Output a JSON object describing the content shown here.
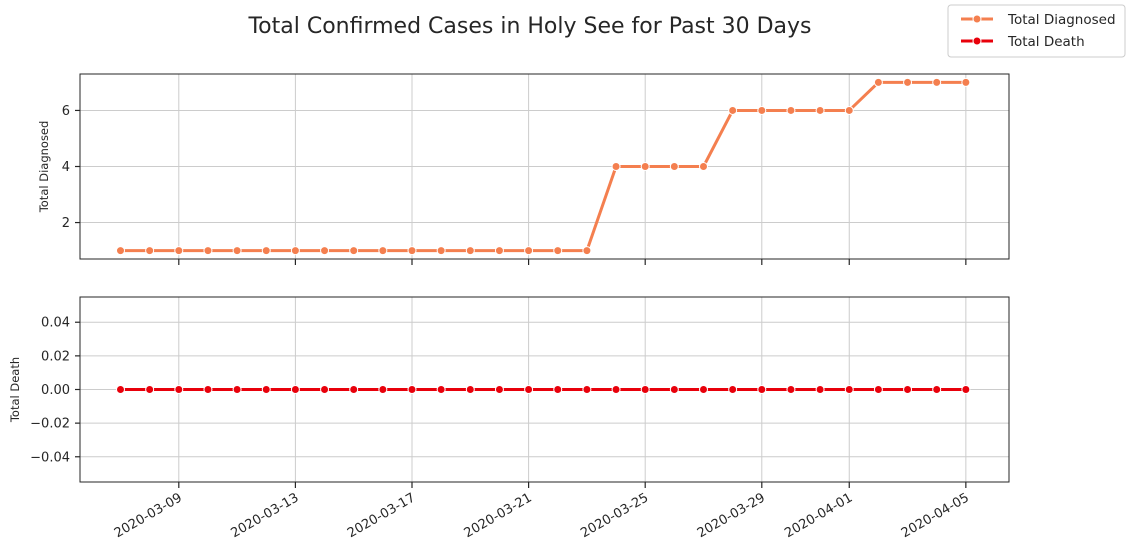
{
  "chart_data": {
    "type": "line",
    "title": "Total Confirmed Cases in Holy See for Past 30 Days",
    "legend": {
      "placement": "top-right",
      "entries": [
        "Total Diagnosed",
        "Total Death"
      ]
    },
    "x": [
      "2020-03-07",
      "2020-03-08",
      "2020-03-09",
      "2020-03-10",
      "2020-03-11",
      "2020-03-12",
      "2020-03-13",
      "2020-03-14",
      "2020-03-15",
      "2020-03-16",
      "2020-03-17",
      "2020-03-18",
      "2020-03-19",
      "2020-03-20",
      "2020-03-21",
      "2020-03-22",
      "2020-03-23",
      "2020-03-24",
      "2020-03-25",
      "2020-03-26",
      "2020-03-27",
      "2020-03-28",
      "2020-03-29",
      "2020-03-30",
      "2020-03-31",
      "2020-04-01",
      "2020-04-02",
      "2020-04-03",
      "2020-04-04",
      "2020-04-05"
    ],
    "xtick_labels": [
      "2020-03-09",
      "2020-03-13",
      "2020-03-17",
      "2020-03-21",
      "2020-03-25",
      "2020-03-29",
      "2020-04-01",
      "2020-04-05"
    ],
    "grid": true,
    "panels": [
      {
        "ylabel": "Total Diagnosed",
        "series": [
          {
            "name": "Total Diagnosed",
            "color": "#f47f4f",
            "values": [
              1,
              1,
              1,
              1,
              1,
              1,
              1,
              1,
              1,
              1,
              1,
              1,
              1,
              1,
              1,
              1,
              1,
              4,
              4,
              4,
              4,
              6,
              6,
              6,
              6,
              6,
              7,
              7,
              7,
              7
            ]
          }
        ],
        "ylim": [
          0.7,
          7.3
        ],
        "yticks": [
          2,
          4,
          6
        ],
        "ytick_labels": [
          "2",
          "4",
          "6"
        ]
      },
      {
        "ylabel": "Total Death",
        "series": [
          {
            "name": "Total Death",
            "color": "#e8000b",
            "values": [
              0,
              0,
              0,
              0,
              0,
              0,
              0,
              0,
              0,
              0,
              0,
              0,
              0,
              0,
              0,
              0,
              0,
              0,
              0,
              0,
              0,
              0,
              0,
              0,
              0,
              0,
              0,
              0,
              0,
              0
            ]
          }
        ],
        "ylim": [
          -0.055,
          0.055
        ],
        "yticks": [
          0.04,
          0.02,
          0.0,
          -0.02,
          -0.04
        ],
        "ytick_labels": [
          "0.04",
          "0.02",
          "0.00",
          "−0.02",
          "−0.04"
        ]
      }
    ]
  }
}
